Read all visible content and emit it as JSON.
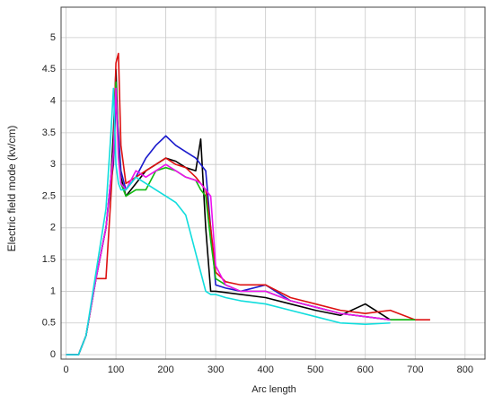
{
  "chart_data": {
    "type": "line",
    "xlabel": "Arc length",
    "ylabel": "Electric field mode  (kv/cm)",
    "x": [
      0,
      25,
      40,
      60,
      80,
      90,
      95,
      100,
      105,
      110,
      120,
      140,
      160,
      180,
      200,
      220,
      240,
      260,
      270,
      280,
      290,
      300,
      320,
      350,
      400,
      450,
      500,
      550,
      600,
      650,
      700,
      730
    ],
    "series": [
      {
        "name": "black",
        "color": "#000000",
        "values": [
          0,
          0,
          0.3,
          1.2,
          2.0,
          2.8,
          3.5,
          4.5,
          3.3,
          2.8,
          2.5,
          2.7,
          2.9,
          3.0,
          3.1,
          3.05,
          2.95,
          2.9,
          3.4,
          2.0,
          1.0,
          1.0,
          0.98,
          0.95,
          0.9,
          0.8,
          0.7,
          0.62,
          0.8,
          0.55,
          0.55,
          null
        ]
      },
      {
        "name": "blue",
        "color": "#1a1acc",
        "values": [
          0,
          0,
          0.3,
          1.2,
          2.0,
          2.7,
          3.0,
          4.0,
          3.5,
          2.9,
          2.6,
          2.8,
          3.1,
          3.3,
          3.45,
          3.3,
          3.2,
          3.1,
          3.0,
          2.9,
          2.0,
          1.1,
          1.05,
          1.0,
          1.1,
          0.85,
          0.75,
          0.65,
          0.6,
          0.55,
          null,
          null
        ]
      },
      {
        "name": "red",
        "color": "#dd1111",
        "values": [
          0,
          0,
          0.3,
          1.2,
          1.2,
          2.5,
          3.2,
          4.6,
          4.75,
          3.3,
          2.7,
          2.8,
          2.9,
          3.0,
          3.1,
          3.0,
          2.95,
          2.8,
          2.7,
          2.6,
          2.0,
          1.3,
          1.15,
          1.1,
          1.1,
          0.9,
          0.8,
          0.7,
          0.65,
          0.7,
          0.55,
          0.55
        ]
      },
      {
        "name": "green",
        "color": "#11bb11",
        "values": [
          0,
          0,
          0.3,
          1.2,
          2.0,
          2.8,
          3.2,
          4.3,
          3.2,
          2.7,
          2.5,
          2.6,
          2.6,
          2.9,
          2.95,
          2.9,
          2.8,
          2.75,
          2.6,
          2.5,
          1.8,
          1.2,
          1.1,
          1.0,
          1.0,
          0.85,
          0.75,
          0.65,
          0.6,
          0.55,
          0.55,
          null
        ]
      },
      {
        "name": "magenta",
        "color": "#ee11ee",
        "values": [
          0,
          0,
          0.3,
          1.2,
          2.0,
          2.8,
          3.2,
          4.2,
          3.1,
          2.7,
          2.6,
          2.9,
          2.8,
          2.9,
          3.0,
          2.9,
          2.8,
          2.75,
          2.7,
          2.6,
          2.5,
          1.4,
          1.1,
          1.0,
          1.0,
          0.85,
          0.75,
          0.65,
          0.6,
          0.55,
          null,
          null
        ]
      },
      {
        "name": "cyan",
        "color": "#11dddd",
        "values": [
          0,
          0,
          0.3,
          1.3,
          2.3,
          3.5,
          4.2,
          3.0,
          2.7,
          2.6,
          2.6,
          2.8,
          2.7,
          2.6,
          2.5,
          2.4,
          2.2,
          1.6,
          1.3,
          1.0,
          0.95,
          0.95,
          0.9,
          0.85,
          0.8,
          0.7,
          0.6,
          0.5,
          0.48,
          0.5,
          null,
          null
        ]
      }
    ],
    "xlim": [
      -10,
      840
    ],
    "xticks": [
      0,
      100,
      200,
      300,
      400,
      500,
      600,
      700,
      800
    ],
    "ylim": [
      -0.07,
      5.48
    ],
    "yticks": [
      0,
      0.5,
      1,
      1.5,
      2,
      2.5,
      3,
      3.5,
      4,
      4.5,
      5
    ],
    "grid": true
  }
}
